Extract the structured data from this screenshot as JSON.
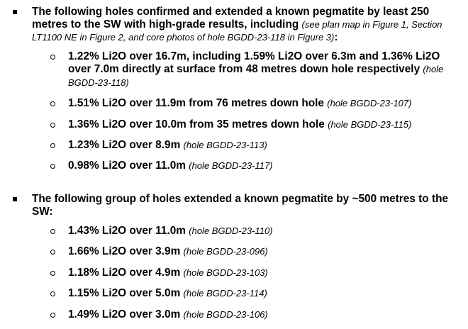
{
  "section1": {
    "lead": "The following holes confirmed and extended a known pegmatite by least 250 metres to the SW with high-grade results, including ",
    "note": "(see plan map in Figure 1, Section LT1100 NE in Figure 2, and core photos of hole BGDD-23-118 in Figure 3)",
    "colon": ":",
    "items": [
      {
        "main": "1.22% Li2O over 16.7m, including 1.59% Li2O over 6.3m and 1.36% Li2O over 7.0m directly at surface from 48 metres down hole respectively",
        "hole": "(hole BGDD-23-118)"
      },
      {
        "main": "1.51% Li2O over 11.9m from 76 metres down hole",
        "hole": "(hole BGDD-23-107)"
      },
      {
        "main": "1.36% Li2O over 10.0m from 35 metres down hole",
        "hole": "(hole BGDD-23-115)"
      },
      {
        "main": "1.23% Li2O over 8.9m",
        "hole": "(hole BGDD-23-113)"
      },
      {
        "main": "0.98% Li2O over 11.0m",
        "hole": "(hole BGDD-23-117)"
      }
    ]
  },
  "section2": {
    "lead": "The following group of holes extended a known pegmatite by ~500 metres to the SW:",
    "items": [
      {
        "main": "1.43% Li2O over 11.0m",
        "hole": "(hole BGDD-23-110)"
      },
      {
        "main": "1.66% Li2O over 3.9m",
        "hole": "(hole BGDD-23-096)"
      },
      {
        "main": "1.18% Li2O over 4.9m",
        "hole": "(hole BGDD-23-103)"
      },
      {
        "main": "1.15% Li2O over 5.0m",
        "hole": "(hole BGDD-23-114)"
      },
      {
        "main": "1.49% Li2O over 3.0m",
        "hole": "(hole BGDD-23-106)"
      }
    ]
  }
}
